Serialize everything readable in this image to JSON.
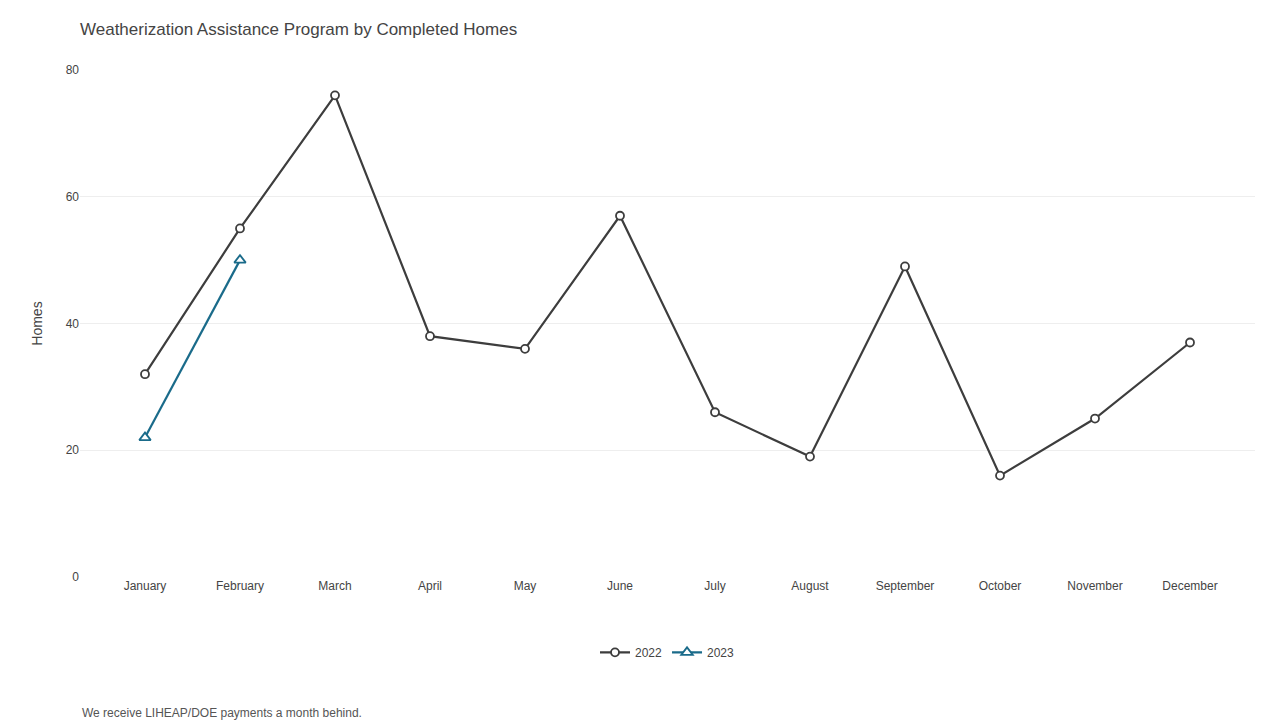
{
  "chart_data": {
    "type": "line",
    "title": "Weatherization Assistance Program by Completed Homes",
    "ylabel": "Homes",
    "annotations": [
      "We receive LIHEAP/DOE payments a month behind."
    ],
    "categories": [
      "January",
      "February",
      "March",
      "April",
      "May",
      "June",
      "July",
      "August",
      "September",
      "October",
      "November",
      "December"
    ],
    "series": [
      {
        "name": "2022",
        "color": "#3d3d3d",
        "marker": "circle",
        "values": [
          32,
          55,
          76,
          38,
          36,
          57,
          26,
          19,
          49,
          16,
          25,
          37
        ]
      },
      {
        "name": "2023",
        "color": "#1a6b8a",
        "marker": "triangle-up",
        "values": [
          22,
          50,
          null,
          null,
          null,
          null,
          null,
          null,
          null,
          null,
          null,
          null
        ]
      }
    ],
    "ylim": [
      0,
      80
    ],
    "yticks": [
      0,
      20,
      40,
      60,
      80
    ],
    "grid": true,
    "legend": "bottom"
  }
}
